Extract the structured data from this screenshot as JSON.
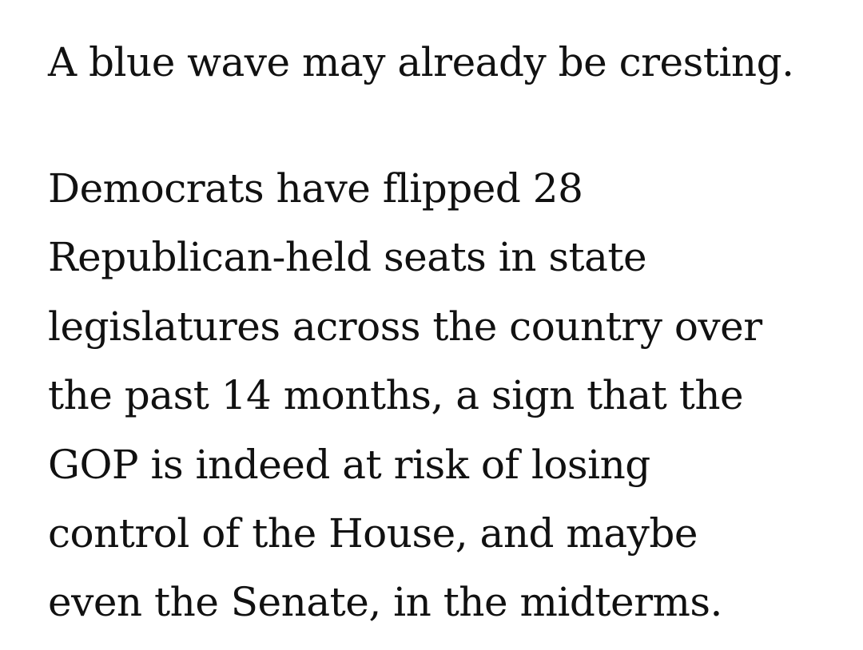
{
  "article": {
    "headline": "A blue wave may already be cresting.",
    "paragraph_lines": [
      "Democrats have flipped 28",
      "Republican-held seats in state",
      "legislatures across the country over",
      "the past 14 months, a sign that the",
      "GOP is indeed at risk of losing",
      "control of the House, and maybe",
      "even the Senate, in the midterms."
    ]
  }
}
